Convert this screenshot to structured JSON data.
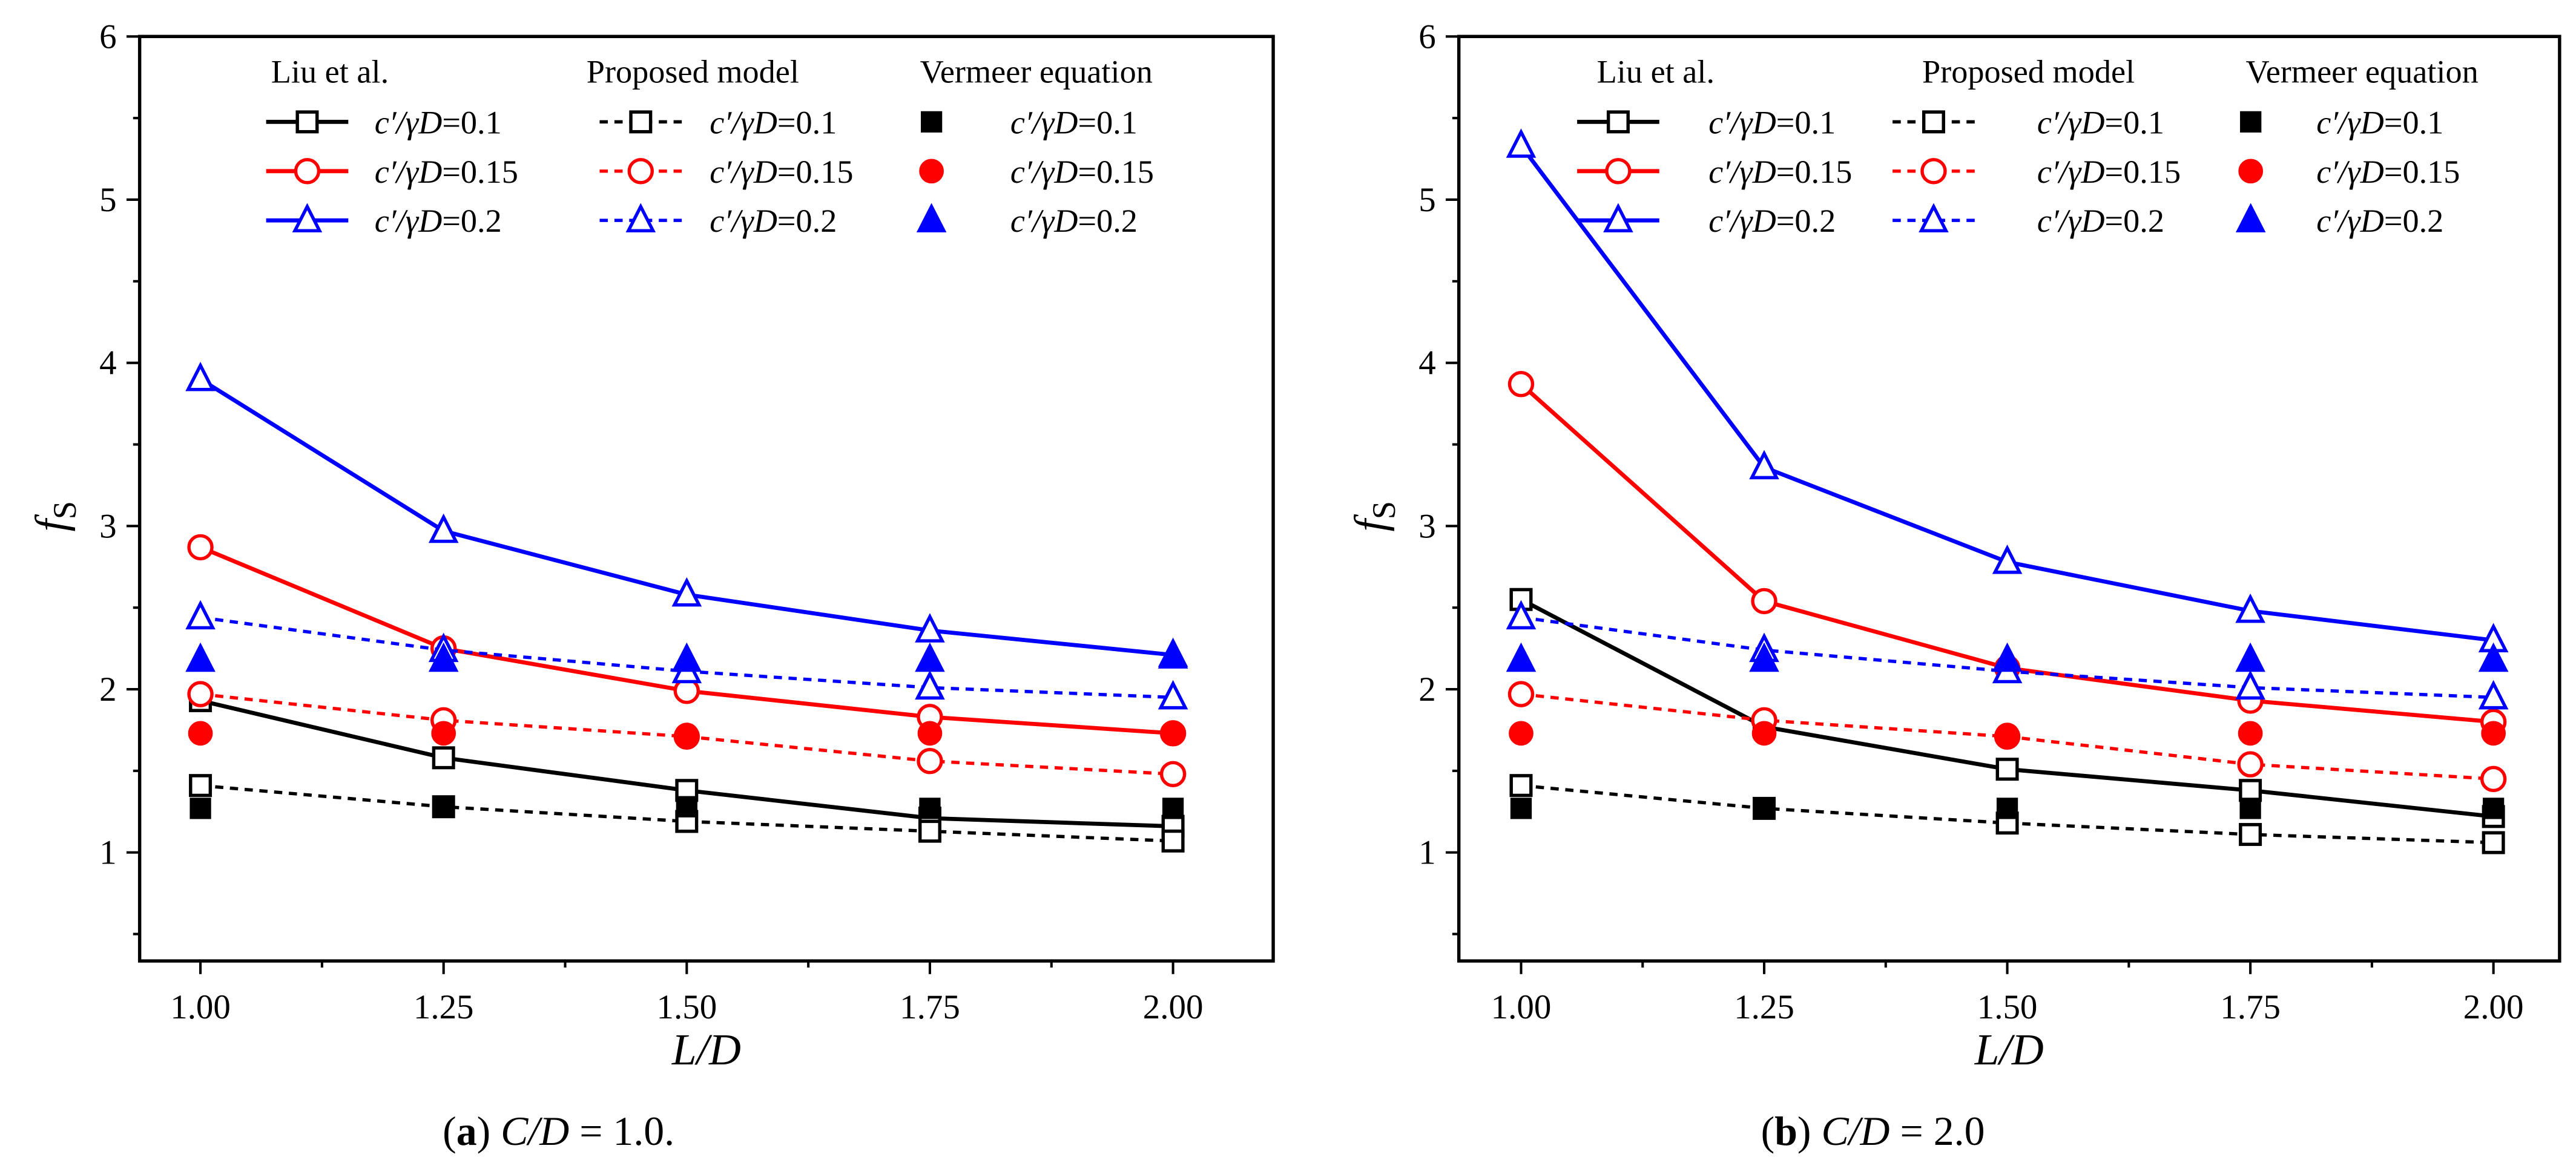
{
  "chart_data": [
    {
      "type": "line",
      "id": "a",
      "caption": {
        "letter": "a",
        "open": "(",
        "close": ")",
        "var": "C/D",
        "rest": " = 1.0."
      },
      "xlabel": "L/D",
      "ylabel": {
        "main": "f",
        "sub": "S"
      },
      "x": [
        1.0,
        1.25,
        1.5,
        1.75,
        2.0
      ],
      "xticks": [
        "1.00",
        "1.25",
        "1.50",
        "1.75",
        "2.00"
      ],
      "yticks": [
        "1",
        "2",
        "3",
        "4",
        "5",
        "6"
      ],
      "xlim": [
        0.9375,
        2.103
      ],
      "ylim": [
        0.335,
        6
      ],
      "legend_headers": [
        "Liu et al.",
        "Proposed model",
        "Vermeer equation"
      ],
      "legend_placement": "top",
      "series": [
        {
          "name": "c′/γD=0.1",
          "group": 0,
          "param": "c′/γD",
          "value": "=0.1",
          "color": "#000000",
          "marker": "square",
          "style": "solid",
          "values": [
            1.93,
            1.58,
            1.38,
            1.21,
            1.16
          ]
        },
        {
          "name": "c′/γD=0.15",
          "group": 0,
          "param": "c′/γD",
          "value": "=0.15",
          "color": "#ff0000",
          "marker": "circle",
          "style": "solid",
          "values": [
            2.87,
            2.25,
            1.99,
            1.83,
            1.73
          ]
        },
        {
          "name": "c′/γD=0.2",
          "group": 0,
          "param": "c′/γD",
          "value": "=0.2",
          "color": "#0000ff",
          "marker": "triangle",
          "style": "solid",
          "values": [
            3.9,
            2.97,
            2.58,
            2.36,
            2.21
          ]
        },
        {
          "name": "c′/γD=0.1",
          "group": 1,
          "param": "c′/γD",
          "value": "=0.1",
          "color": "#000000",
          "marker": "square",
          "style": "dash",
          "values": [
            1.41,
            1.28,
            1.19,
            1.13,
            1.07
          ]
        },
        {
          "name": "c′/γD=0.15",
          "group": 1,
          "param": "c′/γD",
          "value": "=0.15",
          "color": "#ff0000",
          "marker": "circle",
          "style": "dash",
          "values": [
            1.97,
            1.81,
            1.71,
            1.56,
            1.48
          ]
        },
        {
          "name": "c′/γD=0.2",
          "group": 1,
          "param": "c′/γD",
          "value": "=0.2",
          "color": "#0000ff",
          "marker": "triangle",
          "style": "dash",
          "values": [
            2.44,
            2.24,
            2.11,
            2.01,
            1.95
          ]
        },
        {
          "name": "c′/γD=0.1",
          "group": 2,
          "param": "c′/γD",
          "value": "=0.1",
          "color": "#000000",
          "marker": "square-filled",
          "style": "none",
          "values": [
            1.27,
            1.28,
            1.28,
            1.27,
            1.27
          ]
        },
        {
          "name": "c′/γD=0.15",
          "group": 2,
          "param": "c′/γD",
          "value": "=0.15",
          "color": "#ff0000",
          "marker": "circle-filled",
          "style": "none",
          "values": [
            1.73,
            1.73,
            1.72,
            1.73,
            1.73
          ]
        },
        {
          "name": "c′/γD=0.2",
          "group": 2,
          "param": "c′/γD",
          "value": "=0.2",
          "color": "#0000ff",
          "marker": "triangle-filled",
          "style": "none",
          "values": [
            2.18,
            2.18,
            2.18,
            2.18,
            2.2
          ]
        }
      ]
    },
    {
      "type": "line",
      "id": "b",
      "caption": {
        "letter": "b",
        "open": "(",
        "close": ")",
        "var": "C/D",
        "rest": " = 2.0"
      },
      "xlabel": "L/D",
      "ylabel": {
        "main": "f",
        "sub": "S"
      },
      "x": [
        1.0,
        1.25,
        1.5,
        1.75,
        2.0
      ],
      "xticks": [
        "1.00",
        "1.25",
        "1.50",
        "1.75",
        "2.00"
      ],
      "yticks": [
        "1",
        "2",
        "3",
        "4",
        "5",
        "6"
      ],
      "xlim": [
        0.936,
        2.068
      ],
      "ylim": [
        0.335,
        6
      ],
      "legend_headers": [
        "Liu et al.",
        "Proposed model",
        "Vermeer equation"
      ],
      "legend_placement": "top",
      "series": [
        {
          "name": "c′/γD=0.1",
          "group": 0,
          "param": "c′/γD",
          "value": "=0.1",
          "color": "#000000",
          "marker": "square",
          "style": "solid",
          "values": [
            2.55,
            1.77,
            1.51,
            1.38,
            1.22
          ]
        },
        {
          "name": "c′/γD=0.15",
          "group": 0,
          "param": "c′/γD",
          "value": "=0.15",
          "color": "#ff0000",
          "marker": "circle",
          "style": "solid",
          "values": [
            3.87,
            2.54,
            2.13,
            1.93,
            1.8
          ]
        },
        {
          "name": "c′/γD=0.2",
          "group": 0,
          "param": "c′/γD",
          "value": "=0.2",
          "color": "#0000ff",
          "marker": "triangle",
          "style": "solid",
          "values": [
            5.33,
            3.36,
            2.78,
            2.48,
            2.3
          ]
        },
        {
          "name": "c′/γD=0.1",
          "group": 1,
          "param": "c′/γD",
          "value": "=0.1",
          "color": "#000000",
          "marker": "square",
          "style": "dash",
          "values": [
            1.41,
            1.27,
            1.18,
            1.11,
            1.06
          ]
        },
        {
          "name": "c′/γD=0.15",
          "group": 1,
          "param": "c′/γD",
          "value": "=0.15",
          "color": "#ff0000",
          "marker": "circle",
          "style": "dash",
          "values": [
            1.97,
            1.81,
            1.71,
            1.54,
            1.45
          ]
        },
        {
          "name": "c′/γD=0.2",
          "group": 1,
          "param": "c′/γD",
          "value": "=0.2",
          "color": "#0000ff",
          "marker": "triangle",
          "style": "dash",
          "values": [
            2.44,
            2.24,
            2.11,
            2.01,
            1.95
          ]
        },
        {
          "name": "c′/γD=0.1",
          "group": 2,
          "param": "c′/γD",
          "value": "=0.1",
          "color": "#000000",
          "marker": "square-filled",
          "style": "none",
          "values": [
            1.27,
            1.27,
            1.27,
            1.27,
            1.27
          ]
        },
        {
          "name": "c′/γD=0.15",
          "group": 2,
          "param": "c′/γD",
          "value": "=0.15",
          "color": "#ff0000",
          "marker": "circle-filled",
          "style": "none",
          "values": [
            1.73,
            1.73,
            1.72,
            1.73,
            1.73
          ]
        },
        {
          "name": "c′/γD=0.2",
          "group": 2,
          "param": "c′/γD",
          "value": "=0.2",
          "color": "#0000ff",
          "marker": "triangle-filled",
          "style": "none",
          "values": [
            2.18,
            2.18,
            2.18,
            2.18,
            2.18
          ]
        }
      ]
    }
  ]
}
